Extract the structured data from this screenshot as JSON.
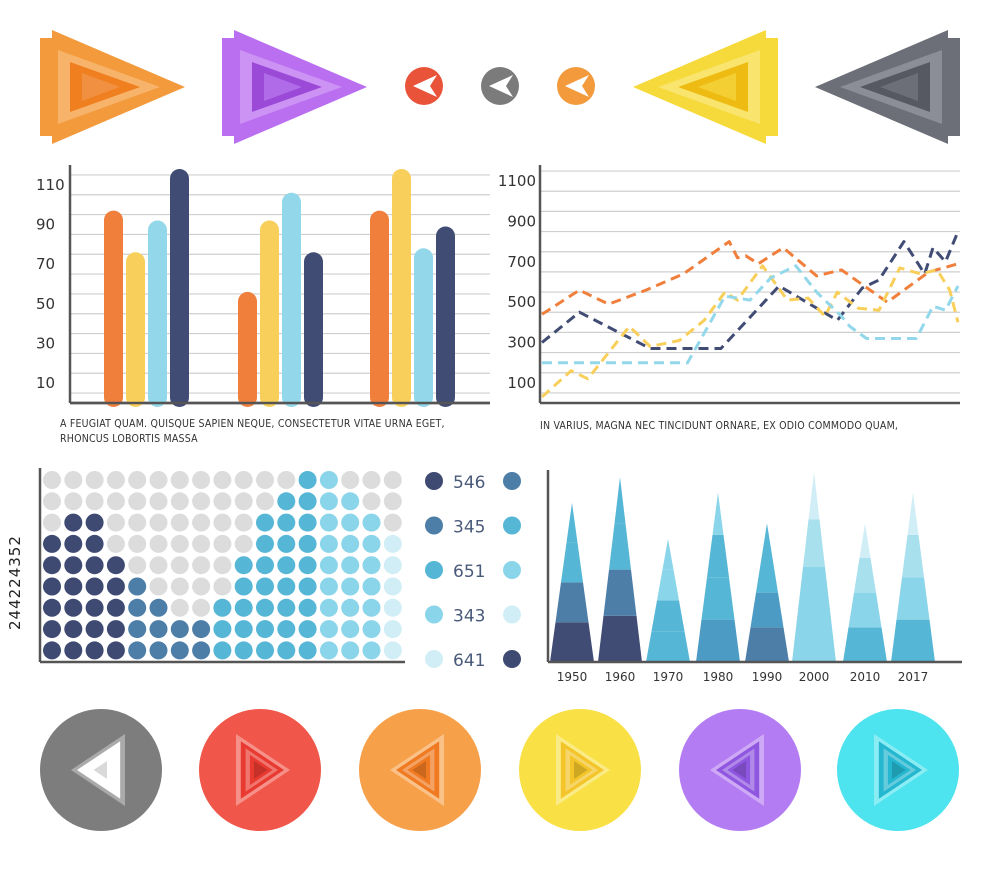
{
  "top_icons": [
    {
      "name": "orange-arrow-left-icon",
      "color": "#f39a3c",
      "shape": "pennant-right"
    },
    {
      "name": "purple-arrow-right-icon",
      "color": "#b96ff0",
      "shape": "pennant-right"
    },
    {
      "name": "red-chevron-left-icon",
      "color": "#e8533a",
      "shape": "circle"
    },
    {
      "name": "gray-chevron-left-icon",
      "color": "#7b7b7b",
      "shape": "circle"
    },
    {
      "name": "orange-chevron-left-icon",
      "color": "#f39a3c",
      "shape": "circle"
    },
    {
      "name": "yellow-arrow-left-icon",
      "color": "#f6d93a",
      "shape": "pennant-left"
    },
    {
      "name": "gray-arrow-left-icon",
      "color": "#6d6f78",
      "shape": "pennant-left"
    }
  ],
  "bottom_icons": [
    {
      "name": "gray-circle-arrow-left-icon",
      "color": "#7d7d7d",
      "inner": "#ffffff",
      "dir": "left"
    },
    {
      "name": "red-circle-arrow-right-icon",
      "color": "#f0574a",
      "inner": "#e83a30",
      "dir": "right"
    },
    {
      "name": "orange-circle-arrow-left-icon",
      "color": "#f7a04a",
      "inner": "#ef7a22",
      "dir": "left"
    },
    {
      "name": "yellow-circle-arrow-right-icon",
      "color": "#f8e045",
      "inner": "#f3c52a",
      "dir": "right"
    },
    {
      "name": "purple-circle-arrow-left-icon",
      "color": "#b47cf2",
      "inner": "#8f56e0",
      "dir": "left"
    },
    {
      "name": "cyan-circle-arrow-right-icon",
      "color": "#4de3ef",
      "inner": "#25b7cf",
      "dir": "right"
    }
  ],
  "captions": {
    "bar": "A FEUGIAT QUAM. QUISQUE SAPIEN NEQUE, CONSECTETUR VITAE URNA EGET, RHONCUS LOBORTIS MASSA",
    "line": "IN VARIUS, MAGNA NEC TINCIDUNT ORNARE, EX ODIO COMMODO QUAM,"
  },
  "stock_id": "244224352",
  "chart_data": [
    {
      "type": "bar",
      "title": "",
      "yticks": [
        10,
        30,
        50,
        70,
        90,
        110
      ],
      "ylim": [
        0,
        120
      ],
      "grid": true,
      "colors": [
        "#f07f3c",
        "#f8cf5a",
        "#92d7ea",
        "#414c74"
      ],
      "groups": [
        {
          "values": [
            97,
            76,
            92,
            118
          ]
        },
        {
          "values": [
            56,
            92,
            106,
            76
          ]
        },
        {
          "values": [
            97,
            118,
            78,
            89
          ]
        }
      ]
    },
    {
      "type": "line",
      "title": "",
      "yticks": [
        100,
        300,
        500,
        700,
        900,
        1100
      ],
      "ylim": [
        0,
        1180
      ],
      "grid": true,
      "style": "dashed",
      "series": [
        {
          "color": "#f07f3c",
          "points": [
            [
              0,
              440
            ],
            [
              0.09,
              560
            ],
            [
              0.16,
              490
            ],
            [
              0.25,
              560
            ],
            [
              0.34,
              640
            ],
            [
              0.45,
              800
            ],
            [
              0.47,
              720
            ],
            [
              0.49,
              730
            ],
            [
              0.52,
              690
            ],
            [
              0.58,
              770
            ],
            [
              0.66,
              630
            ],
            [
              0.72,
              660
            ],
            [
              0.83,
              500
            ],
            [
              0.93,
              650
            ],
            [
              1,
              690
            ]
          ]
        },
        {
          "color": "#414c74",
          "points": [
            [
              0,
              300
            ],
            [
              0.09,
              450
            ],
            [
              0.26,
              270
            ],
            [
              0.43,
              270
            ],
            [
              0.57,
              580
            ],
            [
              0.71,
              410
            ],
            [
              0.77,
              570
            ],
            [
              0.81,
              610
            ],
            [
              0.87,
              800
            ],
            [
              0.92,
              640
            ],
            [
              0.94,
              770
            ],
            [
              0.97,
              700
            ],
            [
              1,
              850
            ]
          ]
        },
        {
          "color": "#f8cf5a",
          "points": [
            [
              0,
              30
            ],
            [
              0.07,
              160
            ],
            [
              0.11,
              120
            ],
            [
              0.21,
              380
            ],
            [
              0.26,
              280
            ],
            [
              0.33,
              310
            ],
            [
              0.39,
              410
            ],
            [
              0.44,
              550
            ],
            [
              0.47,
              510
            ],
            [
              0.53,
              680
            ],
            [
              0.59,
              510
            ],
            [
              0.64,
              520
            ],
            [
              0.68,
              430
            ],
            [
              0.71,
              550
            ],
            [
              0.76,
              470
            ],
            [
              0.81,
              460
            ],
            [
              0.86,
              670
            ],
            [
              0.91,
              640
            ],
            [
              0.95,
              660
            ],
            [
              0.98,
              560
            ],
            [
              1,
              400
            ]
          ]
        },
        {
          "color": "#92d7ea",
          "points": [
            [
              0,
              200
            ],
            [
              0.05,
              200
            ],
            [
              0.35,
              200
            ],
            [
              0.44,
              530
            ],
            [
              0.5,
              510
            ],
            [
              0.55,
              620
            ],
            [
              0.61,
              680
            ],
            [
              0.66,
              550
            ],
            [
              0.72,
              430
            ],
            [
              0.74,
              380
            ],
            [
              0.78,
              320
            ],
            [
              0.86,
              320
            ],
            [
              0.9,
              320
            ],
            [
              0.94,
              480
            ],
            [
              0.97,
              460
            ],
            [
              1,
              580
            ]
          ]
        }
      ]
    },
    {
      "type": "heatmap",
      "title": "",
      "rows": 9,
      "cols": 17,
      "column_heights": [
        6,
        7,
        7,
        5,
        4,
        3,
        2,
        2,
        3,
        5,
        7,
        8,
        9,
        9,
        8,
        7,
        6
      ],
      "palette": [
        "#3e4a72",
        "#4c7ea8",
        "#56b6d6",
        "#8bd5ea",
        "#d1eef7",
        "#dcdcdc"
      ],
      "legend": [
        {
          "value": "546",
          "left_color": "#3e4a72",
          "right_color": "#4c7ea8"
        },
        {
          "value": "345",
          "left_color": "#4c7ea8",
          "right_color": "#56b6d6"
        },
        {
          "value": "651",
          "left_color": "#56b6d6",
          "right_color": "#8bd5ea"
        },
        {
          "value": "343",
          "left_color": "#8bd5ea",
          "right_color": "#d1eef7"
        },
        {
          "value": "641",
          "left_color": "#d1eef7",
          "right_color": "#3e4a72"
        }
      ]
    },
    {
      "type": "area",
      "title": "",
      "categories": [
        "1950",
        "1960",
        "1970",
        "1980",
        "1990",
        "2000",
        "2010",
        "2017"
      ],
      "values": [
        155,
        180,
        120,
        165,
        135,
        185,
        135,
        165
      ],
      "layer_colors": [
        [
          "#414c74",
          "#4c7ea8",
          "#56b6d6",
          "#56b6d6"
        ],
        [
          "#414c74",
          "#4c7ea8",
          "#56b6d6",
          "#56b6d6"
        ],
        [
          "#56b6d6",
          "#56b6d6",
          "#8bd5ea",
          "#8bd5ea"
        ],
        [
          "#4c9bc4",
          "#56b6d6",
          "#56b6d6",
          "#8bd5ea"
        ],
        [
          "#4c7ea8",
          "#4c9bc4",
          "#56b6d6",
          "#56b6d6"
        ],
        [
          "#8bd5ea",
          "#8bd5ea",
          "#a8e0ee",
          "#d1eef7"
        ],
        [
          "#56b6d6",
          "#8bd5ea",
          "#a8e0ee",
          "#d1eef7"
        ],
        [
          "#56b6d6",
          "#8bd5ea",
          "#a8e0ee",
          "#d1eef7"
        ]
      ]
    }
  ]
}
